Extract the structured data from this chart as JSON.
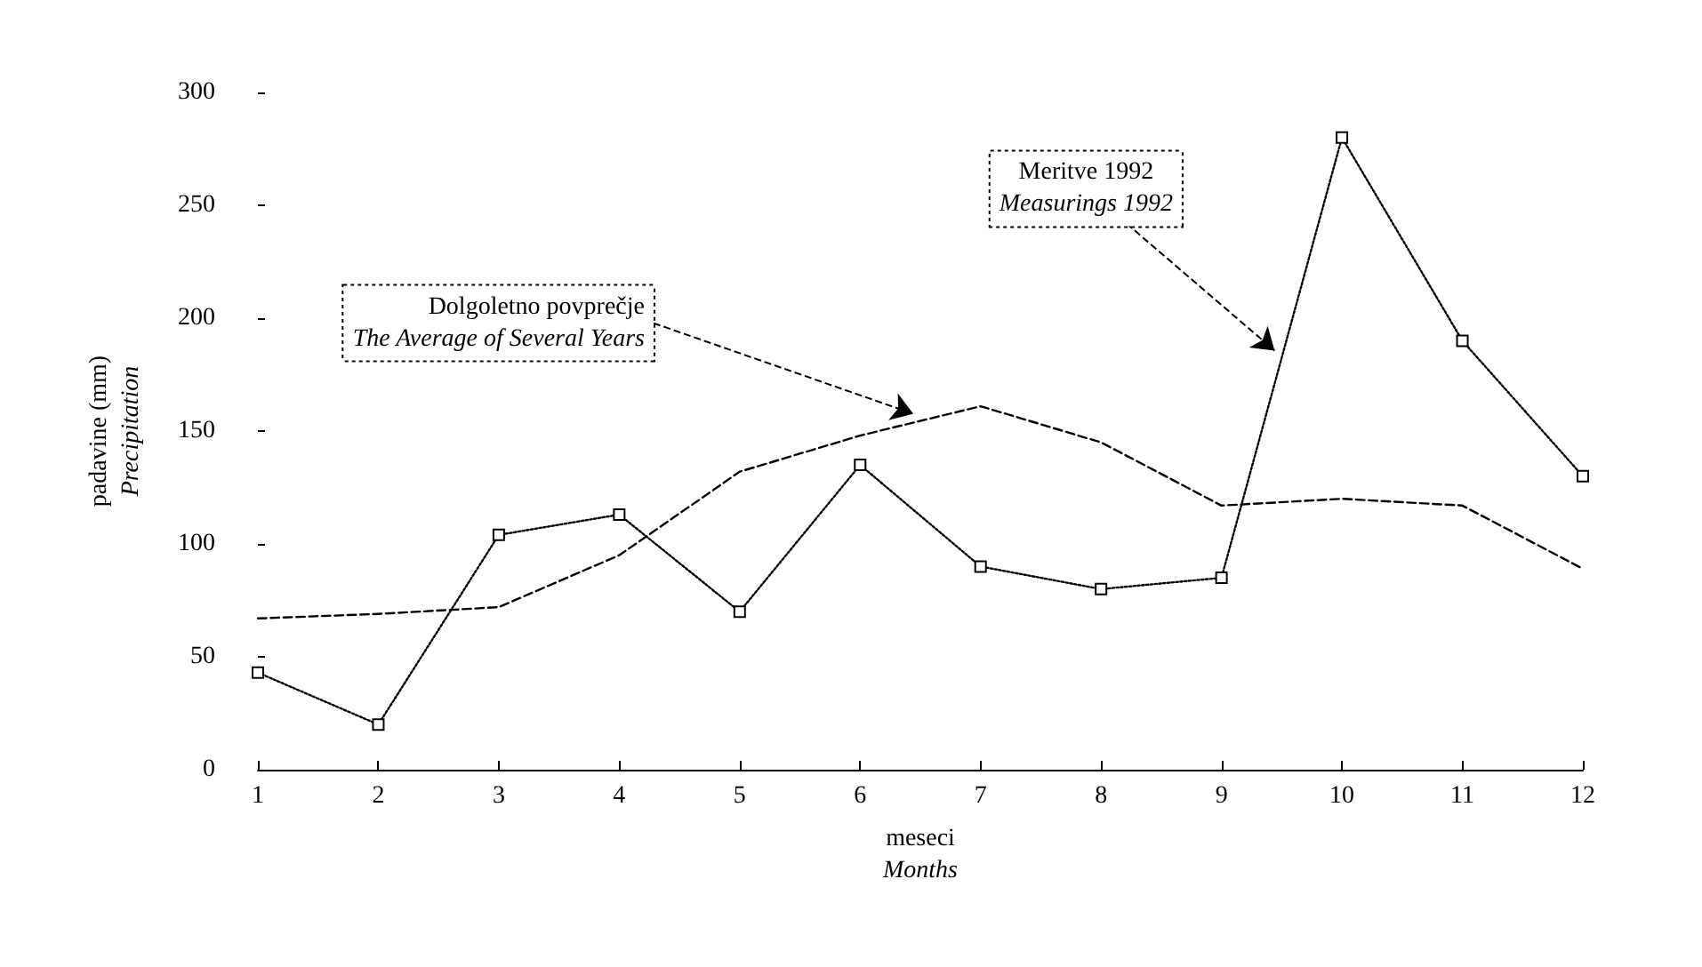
{
  "chart_data": {
    "type": "line",
    "xlabel": "meseci\nMonths",
    "ylabel": "padavine (mm)\nPrecipitation",
    "x": [
      1,
      2,
      3,
      4,
      5,
      6,
      7,
      8,
      9,
      10,
      11,
      12
    ],
    "series": [
      {
        "name": "Dolgoletno povprečje\nThe Average of Several Years",
        "color": "#000000",
        "values": [
          67,
          69,
          72,
          95,
          132,
          148,
          161,
          145,
          117,
          120,
          117,
          89
        ],
        "marker": "none",
        "line_style": "dashed"
      },
      {
        "name": "Meritve 1992\nMeasurings 1992",
        "color": "#000000",
        "values": [
          43,
          20,
          104,
          113,
          70,
          135,
          90,
          80,
          85,
          280,
          190,
          130
        ],
        "marker": "square",
        "line_style": "dotted"
      }
    ],
    "xlim": [
      1,
      12
    ],
    "xticks": [
      1,
      2,
      3,
      4,
      5,
      6,
      7,
      8,
      9,
      10,
      11,
      12
    ],
    "ylim": [
      0,
      300
    ],
    "yticks": [
      0,
      50,
      100,
      150,
      200,
      250,
      300
    ],
    "grid": false,
    "legend": false
  }
}
